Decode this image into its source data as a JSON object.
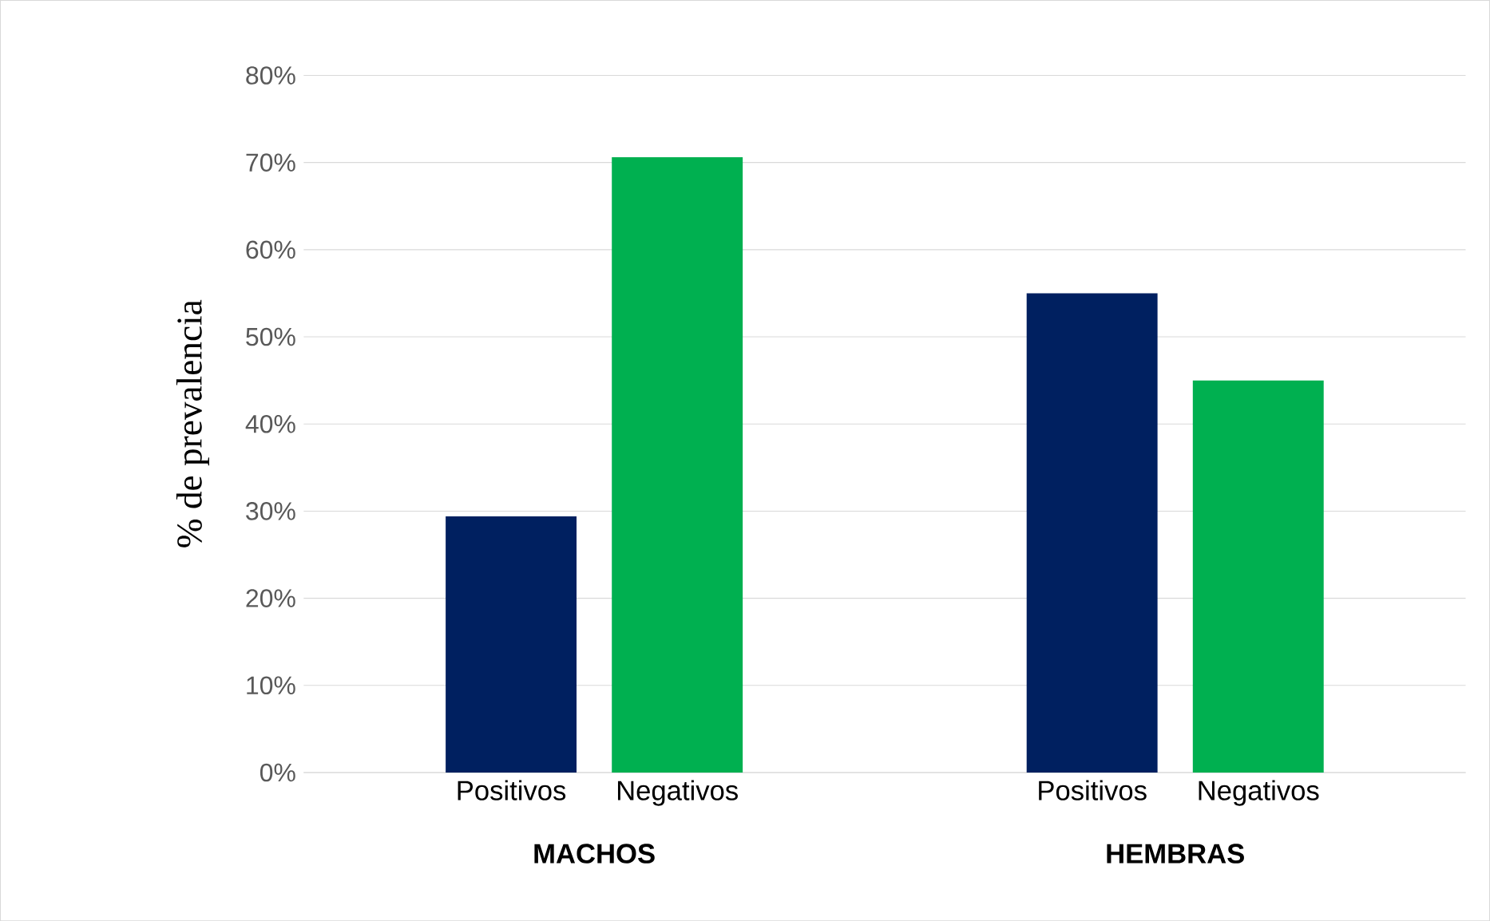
{
  "chart_data": {
    "type": "bar",
    "ylabel": "% de prevalencia",
    "categories": [
      "MACHOS",
      "HEMBRAS"
    ],
    "series": [
      {
        "name": "Positivos",
        "color": "#002060",
        "values": [
          29.4,
          55
        ]
      },
      {
        "name": "Negativos",
        "color": "#00b050",
        "values": [
          70.6,
          45
        ]
      }
    ],
    "ylim": [
      0,
      80
    ],
    "yticks": [
      {
        "value": 0,
        "label": "0%"
      },
      {
        "value": 10,
        "label": "10%"
      },
      {
        "value": 20,
        "label": "20%"
      },
      {
        "value": 30,
        "label": "30%"
      },
      {
        "value": 40,
        "label": "40%"
      },
      {
        "value": 50,
        "label": "50%"
      },
      {
        "value": 60,
        "label": "60%"
      },
      {
        "value": 70,
        "label": "70%"
      },
      {
        "value": 80,
        "label": "80%"
      }
    ],
    "grid": "y"
  }
}
